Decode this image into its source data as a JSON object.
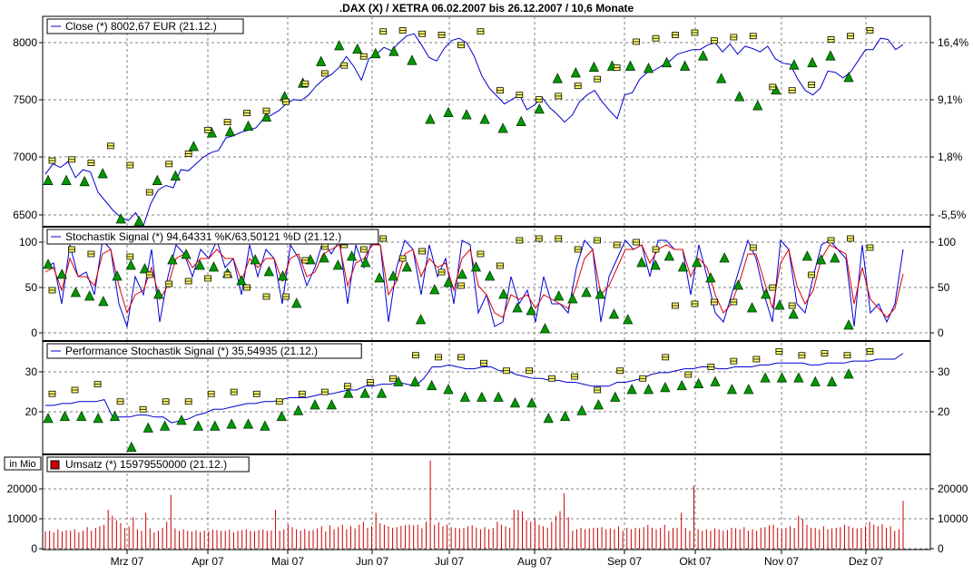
{
  "chart_data": {
    "title": ".DAX (X) / XETRA 06.02.2007 bis 26.12.2007 / 10,6 Monate",
    "type": "line",
    "x_labels": [
      "Mrz 07",
      "Apr 07",
      "Mai 07",
      "Jun 07",
      "Jul 07",
      "Aug 07",
      "Sep 07",
      "Okt 07",
      "Nov 07",
      "Dez 07"
    ],
    "panels": [
      {
        "key": "price",
        "legend": "Close (*) 8002,67 EUR (21.12.)",
        "left_ticks": [
          "8000",
          "7500",
          "7000",
          "6500"
        ],
        "right_ticks": [
          "16,4%",
          "9,1%",
          "1,8%",
          "-5,5%"
        ],
        "ylim": [
          6420,
          8230
        ],
        "series": [
          {
            "name": "Close",
            "color": "#0000cc",
            "values": [
              6860,
              6950,
              6920,
              6970,
              6830,
              6900,
              6880,
              6700,
              6620,
              6540,
              6480,
              6450,
              6520,
              6400,
              6600,
              6720,
              6760,
              6740,
              6900,
              6890,
              6950,
              7010,
              7050,
              7070,
              7180,
              7200,
              7230,
              7250,
              7270,
              7350,
              7380,
              7420,
              7480,
              7520,
              7510,
              7560,
              7640,
              7700,
              7740,
              7800,
              7900,
              7810,
              7690,
              7880,
              7920,
              7980,
              7950,
              8020,
              8080,
              8100,
              8000,
              7890,
              7860,
              7970,
              8040,
              8060,
              8020,
              7900,
              7730,
              7620,
              7550,
              7480,
              7520,
              7560,
              7430,
              7470,
              7540,
              7450,
              7390,
              7320,
              7380,
              7500,
              7560,
              7600,
              7500,
              7420,
              7350,
              7560,
              7580,
              7700,
              7760,
              7780,
              7820,
              7860,
              7920,
              7940,
              7960,
              7960,
              8000,
              8020,
              7940,
              8010,
              7920,
              7990,
              7970,
              7940,
              7990,
              7880,
              7840,
              7830,
              7700,
              7600,
              7560,
              7620,
              7770,
              7760,
              7710,
              7760,
              7860,
              7960,
              7960,
              8060,
              8050,
              7960,
              8003
            ]
          }
        ],
        "markers_up": [
          6800,
          6800,
          6790,
          6860,
          6460,
          6440,
          6800,
          6840,
          7100,
          7220,
          7230,
          7280,
          7360,
          7540,
          7660,
          7850,
          7990,
          7960,
          7920,
          7940,
          7860,
          7340,
          7400,
          7380,
          7340,
          7260,
          7320,
          7430,
          7700,
          7750,
          7800,
          7810,
          7810,
          7790,
          7840,
          7810,
          7900,
          7700,
          7540,
          7460,
          7600,
          7820,
          7840,
          7900,
          7710
        ],
        "markers_lines": [
          6980,
          6990,
          6960,
          7110,
          6940,
          6700,
          6950,
          7040,
          7250,
          7320,
          7400,
          7420,
          7500,
          7660,
          7750,
          7820,
          7900,
          8120,
          8130,
          8100,
          8090,
          8000,
          8120,
          7600,
          7560,
          7520,
          7550,
          7640,
          7700,
          7800,
          8030,
          8060,
          8090,
          8110,
          8040,
          8070,
          8080,
          7630,
          7600,
          7650,
          8050,
          8080,
          8130
        ]
      },
      {
        "key": "stoch",
        "legend": "Stochastik Signal (*) 94,64331 %K/63,50121 %D (21.12.)",
        "left_ticks": [
          "100",
          "50",
          "0"
        ],
        "right_ticks": [
          "100",
          "50",
          "0"
        ],
        "ylim": [
          -8,
          112
        ],
        "series": [
          {
            "name": "%K",
            "color": "#0000dd",
            "values": [
              70,
              75,
              30,
              95,
              60,
              65,
              40,
              100,
              90,
              30,
              5,
              60,
              40,
              90,
              10,
              60,
              95,
              85,
              60,
              90,
              80,
              100,
              70,
              80,
              40,
              95,
              60,
              90,
              80,
              30,
              95,
              80,
              50,
              70,
              100,
              85,
              100,
              30,
              95,
              70,
              100,
              95,
              10,
              70,
              100,
              90,
              40,
              95,
              60,
              80,
              30,
              100,
              95,
              20,
              40,
              5,
              10,
              60,
              30,
              45,
              10,
              60,
              30,
              30,
              20,
              70,
              100,
              90,
              10,
              60,
              80,
              100,
              90,
              95,
              60,
              100,
              100,
              90,
              90,
              40,
              95,
              60,
              20,
              10,
              40,
              70,
              100,
              80,
              40,
              10,
              100,
              90,
              30,
              20,
              60,
              95,
              100,
              90,
              80,
              5,
              95,
              20,
              30,
              10,
              30,
              90
            ]
          },
          {
            "name": "%D",
            "color": "#dd0000",
            "values": [
              65,
              70,
              45,
              80,
              60,
              60,
              50,
              85,
              90,
              50,
              20,
              40,
              45,
              70,
              35,
              50,
              80,
              85,
              70,
              80,
              80,
              90,
              80,
              80,
              55,
              80,
              70,
              80,
              80,
              55,
              80,
              85,
              60,
              65,
              85,
              90,
              95,
              50,
              75,
              80,
              95,
              95,
              40,
              55,
              85,
              90,
              60,
              80,
              70,
              75,
              45,
              80,
              90,
              50,
              40,
              20,
              15,
              40,
              35,
              40,
              25,
              40,
              35,
              30,
              25,
              50,
              80,
              90,
              40,
              50,
              70,
              90,
              90,
              95,
              75,
              90,
              95,
              90,
              90,
              60,
              80,
              70,
              40,
              20,
              30,
              55,
              85,
              85,
              55,
              25,
              75,
              90,
              50,
              30,
              45,
              80,
              95,
              90,
              85,
              30,
              70,
              35,
              25,
              15,
              25,
              63
            ]
          }
        ],
        "markers_up": [
          73,
          62,
          42,
          38,
          32,
          60,
          72,
          68,
          40,
          78,
          84,
          72,
          70,
          63,
          55,
          78,
          65,
          60,
          30,
          78,
          80,
          72,
          82,
          75,
          58,
          60,
          70,
          12,
          45,
          53,
          62,
          70,
          60,
          40,
          25,
          22,
          2,
          38,
          35,
          42,
          40,
          18,
          12,
          75,
          72,
          82,
          70,
          75,
          58,
          80,
          50,
          25,
          40,
          28,
          18,
          82,
          78,
          80,
          6
        ],
        "markers_lines": [
          45,
          90,
          85,
          100,
          82,
          62,
          52,
          55,
          58,
          62,
          48,
          38,
          38,
          78,
          93,
          95,
          90,
          102,
          80,
          88,
          65,
          50,
          85,
          72,
          100,
          102,
          102,
          90,
          100,
          95,
          98,
          90,
          28,
          30,
          32,
          32,
          92,
          48,
          28,
          62,
          100,
          102,
          92
        ]
      },
      {
        "key": "perf",
        "legend": "Performance Stochastik Signal (*) 35,54935 (21.12.)",
        "left_ticks": [
          "30",
          "20"
        ],
        "right_ticks": [
          "30",
          "20"
        ],
        "ylim": [
          10,
          38
        ],
        "series": [
          {
            "name": "Performance",
            "color": "#0000cc",
            "values": [
              22,
              22,
              22.5,
              22.5,
              23,
              23,
              23,
              23.5,
              19,
              19,
              19,
              19.5,
              19.5,
              19,
              19,
              17.5,
              18,
              18.5,
              19.5,
              20,
              21,
              21,
              21.5,
              22,
              22.5,
              22.5,
              23,
              23,
              23.5,
              24,
              24,
              24,
              24.5,
              25,
              25,
              25.5,
              26,
              26,
              27,
              27,
              27.5,
              27.5,
              28,
              27.5,
              27,
              29,
              32,
              32,
              32.5,
              32,
              31.5,
              31.5,
              32,
              32,
              31,
              31,
              30,
              29.5,
              29,
              29,
              28.5,
              28.5,
              28,
              28,
              27.5,
              27,
              27,
              27,
              28,
              28,
              28.5,
              29,
              30,
              30.5,
              30.5,
              31,
              31.5,
              31.5,
              32,
              32,
              31.5,
              31.5,
              32,
              32,
              32,
              32.5,
              32.5,
              33,
              33,
              33,
              33,
              32.5,
              32.5,
              33,
              33,
              33,
              33.5,
              33.5,
              33.5,
              34,
              34,
              34,
              35.5
            ]
          }
        ],
        "markers_up": [
          18.5,
          19,
          19,
          18.5,
          19,
          11,
          16,
          16.5,
          18,
          16.5,
          16.5,
          17,
          17,
          16.5,
          19,
          20.5,
          22,
          22,
          25,
          25,
          25,
          28,
          28,
          27,
          26,
          24,
          24,
          24,
          22.5,
          22.5,
          18.5,
          19,
          20.5,
          22,
          24,
          26,
          26,
          26.5,
          27,
          27.5,
          28,
          26,
          26,
          29,
          29,
          29,
          28,
          28,
          30
        ],
        "markers_lines": [
          25,
          26,
          27.5,
          23,
          21,
          23,
          23,
          25,
          25.5,
          25,
          23,
          25,
          25.5,
          27,
          28,
          29,
          35,
          34.5,
          34.5,
          33,
          31,
          31,
          29,
          29.5,
          26,
          31,
          29,
          34.5,
          30,
          32,
          33.5,
          34,
          36,
          35,
          35.5,
          35,
          36
        ]
      },
      {
        "key": "volume",
        "legend": "Umsatz (*) 15979550000 (21.12.)",
        "unit_box": "in Mio",
        "left_ticks": [
          "20000",
          "10000",
          "0"
        ],
        "right_ticks": [
          "20000",
          "10000",
          "0"
        ],
        "ylim": [
          0,
          30000
        ],
        "series": [
          {
            "name": "Umsatz",
            "color": "#cc0000",
            "values": [
              5800,
              6000,
              5500,
              6500,
              5800,
              6200,
              6000,
              6500,
              5500,
              6000,
              7200,
              6000,
              7000,
              7500,
              8000,
              13000,
              11000,
              9500,
              8500,
              7000,
              7500,
              10500,
              6500,
              6000,
              12000,
              6800,
              5500,
              6000,
              7000,
              9000,
              18000,
              6800,
              6000,
              6500,
              6000,
              5800,
              6200,
              5600,
              6000,
              5800,
              6400,
              6200,
              6000,
              6000,
              6400,
              5500,
              6000,
              6200,
              6500,
              6000,
              5900,
              6200,
              6400,
              6000,
              6100,
              13000,
              6000,
              6500,
              8000,
              7200,
              6500,
              6000,
              6600,
              6000,
              6200,
              6800,
              7500,
              5800,
              7800,
              6500,
              7200,
              8000,
              6500,
              7500,
              6800,
              8000,
              9000,
              7000,
              7500,
              12000,
              8500,
              8000,
              7500,
              7000,
              7200,
              7600,
              7800,
              8000,
              7800,
              8000,
              6800,
              9000,
              29500,
              8000,
              8800,
              7500,
              8000,
              7200,
              7000,
              6800,
              7000,
              7500,
              7800,
              7000,
              6500,
              7200,
              6500,
              7000,
              9000,
              8000,
              7500,
              7000,
              13000,
              13000,
              12500,
              9500,
              9000,
              10000,
              8000,
              7500,
              7000,
              9000,
              11000,
              12500,
              18500,
              10500,
              6000,
              6500,
              7000,
              6500,
              6800,
              7000,
              7000,
              7200,
              6500,
              6800,
              6500,
              7500,
              6000,
              7000,
              6500,
              7000,
              6800,
              7200,
              8000,
              7000,
              6500,
              7000,
              8000,
              6000,
              7000,
              7000,
              12000,
              7000,
              6000,
              21000,
              6500,
              6000,
              6500,
              6000,
              6800,
              6500,
              6000,
              6300,
              7000,
              6800,
              6500,
              7200,
              6000,
              6500,
              6000,
              7000,
              7200,
              7800,
              8000,
              7000,
              6500,
              7000,
              7500,
              7000,
              11000,
              10000,
              8000,
              7000,
              7000,
              6500,
              7500,
              6500,
              6800,
              7000,
              7200,
              8000,
              7500,
              7000,
              6800,
              7000,
              7500,
              9000,
              8000,
              7500,
              8200,
              7000,
              7500,
              6000,
              6500,
              15979
            ]
          }
        ]
      }
    ]
  }
}
